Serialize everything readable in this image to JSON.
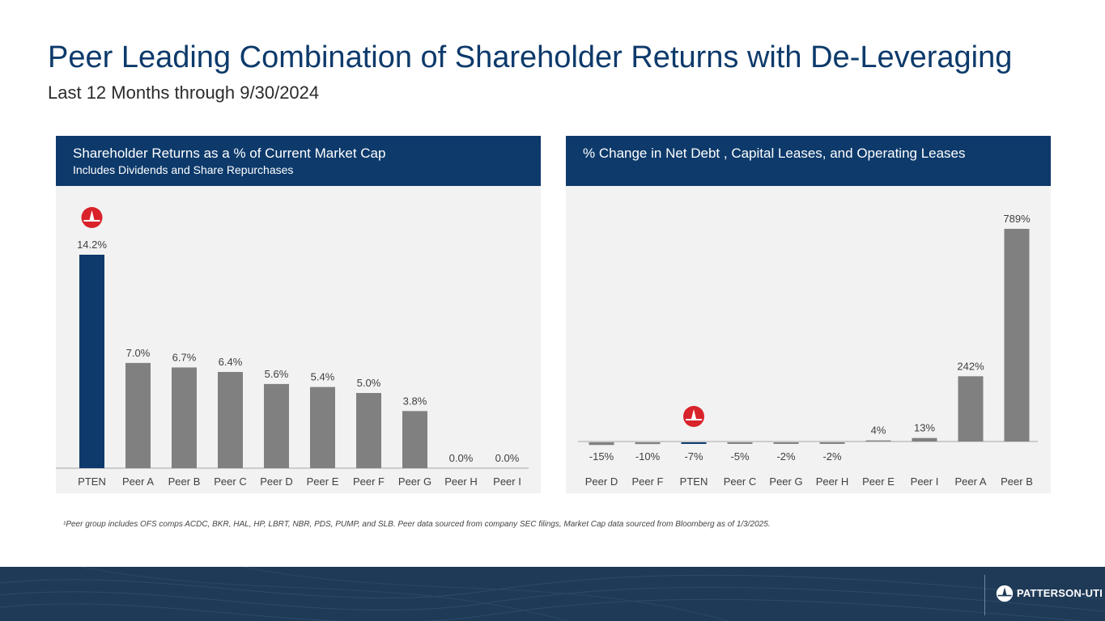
{
  "page": {
    "title": "Peer Leading Combination of Shareholder Returns with De-Leveraging",
    "subtitle": "Last 12 Months through 9/30/2024",
    "footnote": "¹Peer group includes OFS comps ACDC, BKR, HAL, HP, LBRT, NBR, PDS, PUMP, and SLB. Peer data sourced from company SEC filings, Market Cap data sourced from Bloomberg as of 1/3/2025.",
    "brand": "PATTERSON-UTI",
    "colors": {
      "navy": "#0d3a6b",
      "bar_gray": "#808080",
      "panel_bg": "#f2f2f2",
      "footer_bg": "#1f3a57",
      "logo_red": "#d9232a"
    }
  },
  "chart_data": [
    {
      "type": "bar",
      "title": "Shareholder Returns as a % of Current Market Cap",
      "subtitle": "Includes Dividends and Share Repurchases",
      "categories": [
        "PTEN",
        "Peer A",
        "Peer B",
        "Peer C",
        "Peer D",
        "Peer E",
        "Peer F",
        "Peer G",
        "Peer H",
        "Peer I"
      ],
      "values": [
        14.2,
        7.0,
        6.7,
        6.4,
        5.6,
        5.4,
        5.0,
        3.8,
        0.0,
        0.0
      ],
      "labels": [
        "14.2%",
        "7.0%",
        "6.7%",
        "6.4%",
        "5.6%",
        "5.4%",
        "5.0%",
        "3.8%",
        "0.0%",
        "0.0%"
      ],
      "highlight": "PTEN",
      "ylim": [
        0,
        15
      ],
      "xlabel": "",
      "ylabel": ""
    },
    {
      "type": "bar",
      "title": "% Change in Net Debt , Capital Leases, and Operating Leases",
      "categories": [
        "Peer D",
        "Peer F",
        "PTEN",
        "Peer C",
        "Peer G",
        "Peer H",
        "Peer E",
        "Peer I",
        "Peer A",
        "Peer B"
      ],
      "values": [
        -15,
        -10,
        -7,
        -5,
        -2,
        -2,
        4,
        13,
        242,
        789
      ],
      "labels": [
        "-15%",
        "-10%",
        "-7%",
        "-5%",
        "-2%",
        "-2%",
        "4%",
        "13%",
        "242%",
        "789%"
      ],
      "highlight": "PTEN",
      "ylim": [
        -50,
        800
      ],
      "xlabel": "",
      "ylabel": ""
    }
  ]
}
